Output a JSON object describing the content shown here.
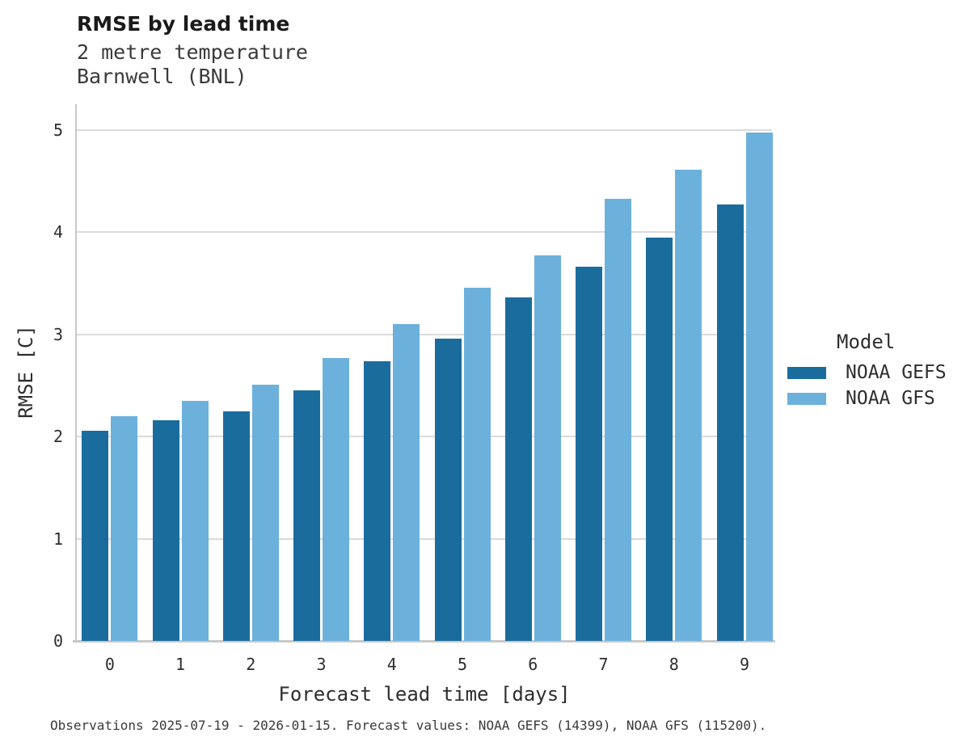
{
  "header": {
    "title": "RMSE by lead time",
    "subtitle_line1": "2 metre temperature",
    "subtitle_line2": "Barnwell (BNL)"
  },
  "chart_data": {
    "type": "bar",
    "title": "RMSE by lead time",
    "subtitle": [
      "2 metre temperature",
      "Barnwell (BNL)"
    ],
    "categories": [
      "0",
      "1",
      "2",
      "3",
      "4",
      "5",
      "6",
      "7",
      "8",
      "9"
    ],
    "series": [
      {
        "name": "NOAA GEFS",
        "color": "#1a6c9d",
        "values": [
          2.06,
          2.16,
          2.25,
          2.45,
          2.74,
          2.96,
          3.36,
          3.66,
          3.95,
          4.27
        ]
      },
      {
        "name": "NOAA GFS",
        "color": "#6bb1dc",
        "values": [
          2.2,
          2.35,
          2.51,
          2.77,
          3.1,
          3.46,
          3.77,
          4.33,
          4.61,
          4.98
        ]
      }
    ],
    "xlabel": "Forecast lead time [days]",
    "ylabel": "RMSE [C]",
    "ylim": [
      0,
      5
    ],
    "yticks": [
      0,
      1,
      2,
      3,
      4,
      5
    ],
    "grid": "horizontal",
    "legend_title": "Model",
    "legend_position": "right"
  },
  "footer": {
    "caption": "Observations 2025-07-19 - 2026-01-15. Forecast values: NOAA GEFS (14399), NOAA GFS (115200)."
  }
}
